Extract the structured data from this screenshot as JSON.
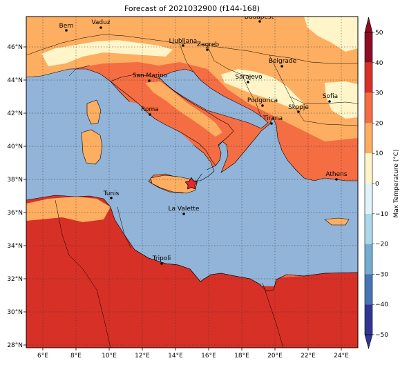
{
  "title": "Forecast of 2021032900 (f144-168)",
  "colorbar": {
    "label": "Max Temperature (°C)",
    "ticks": [
      50,
      40,
      30,
      20,
      10,
      0,
      -10,
      -20,
      -30,
      -40,
      -50
    ],
    "bands": [
      {
        "min": 40,
        "max": 50,
        "color": "#8e0d23"
      },
      {
        "min": 30,
        "max": 40,
        "color": "#d73027"
      },
      {
        "min": 20,
        "max": 30,
        "color": "#f46d43"
      },
      {
        "min": 10,
        "max": 20,
        "color": "#fdae61"
      },
      {
        "min": 0,
        "max": 10,
        "color": "#fff5c8"
      },
      {
        "min": -10,
        "max": 0,
        "color": "#e0f3f8"
      },
      {
        "min": -20,
        "max": -10,
        "color": "#abd9e9"
      },
      {
        "min": -30,
        "max": -20,
        "color": "#74add1"
      },
      {
        "min": -40,
        "max": -30,
        "color": "#4575b4"
      },
      {
        "min": -50,
        "max": -40,
        "color": "#313695"
      }
    ]
  },
  "axes": {
    "lon_ticks": [
      "6°E",
      "8°E",
      "10°E",
      "12°E",
      "14°E",
      "16°E",
      "18°E",
      "20°E",
      "22°E",
      "24°E"
    ],
    "lat_ticks": [
      "46°N",
      "44°N",
      "42°N",
      "40°N",
      "38°N",
      "36°N",
      "34°N",
      "32°N",
      "30°N",
      "28°N"
    ]
  },
  "cities": [
    {
      "name": "Budapest"
    },
    {
      "name": "Bern"
    },
    {
      "name": "Vaduz"
    },
    {
      "name": "Ljubljana"
    },
    {
      "name": "Zagreb"
    },
    {
      "name": "Belgrade"
    },
    {
      "name": "San Marino"
    },
    {
      "name": "Sarajevo"
    },
    {
      "name": "Sofia"
    },
    {
      "name": "Podgorica"
    },
    {
      "name": "Skopje"
    },
    {
      "name": "Roma"
    },
    {
      "name": "Tirana"
    },
    {
      "name": "Athens"
    },
    {
      "name": "Tunis"
    },
    {
      "name": "La Valette"
    },
    {
      "name": "Tripoli"
    }
  ],
  "colors": {
    "sea": "#91b4d8",
    "hot": "#d73027",
    "warm": "#f46d43",
    "mild": "#fdae61",
    "cool": "#fff5c8",
    "marker": "#e8282a"
  }
}
